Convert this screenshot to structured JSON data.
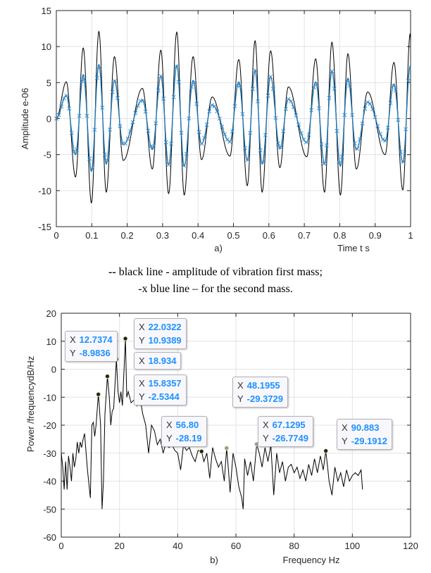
{
  "chart_data": [
    {
      "type": "line",
      "panel_label": "a)",
      "xlabel": "Time t s",
      "ylabel": "Amplitude e-06",
      "xlim": [
        0,
        1
      ],
      "ylim": [
        -15,
        15
      ],
      "xticks": [
        "0",
        "0.1",
        "0.2",
        "0.3",
        "0.4",
        "0.5",
        "0.6",
        "0.7",
        "0.8",
        "0.9",
        "1"
      ],
      "yticks": [
        "15",
        "10",
        "5",
        "0",
        "-5",
        "-10",
        "-15"
      ],
      "grid": true,
      "x": [
        0,
        0.028,
        0.054,
        0.076,
        0.099,
        0.12,
        0.141,
        0.164,
        0.189,
        0.243,
        0.271,
        0.295,
        0.317,
        0.34,
        0.361,
        0.386,
        0.41,
        0.44,
        0.49,
        0.515,
        0.539,
        0.561,
        0.581,
        0.605,
        0.631,
        0.655,
        0.707,
        0.732,
        0.757,
        0.778,
        0.802,
        0.823,
        0.847,
        0.879,
        0.928,
        0.953,
        0.978,
        0.999
      ],
      "series": [
        {
          "color": "#000000",
          "style": "solid",
          "values": [
            0,
            5.1,
            -8.1,
            9.8,
            -11.7,
            12.1,
            -10.2,
            8.6,
            -5.8,
            4.2,
            -7.0,
            9.5,
            -10.4,
            12.0,
            -10.6,
            8.6,
            -5.7,
            3.0,
            -5.2,
            8.2,
            -9.3,
            10.8,
            -10.2,
            9.4,
            -6.8,
            4.4,
            -5.3,
            8.3,
            -10.2,
            10.6,
            -10.6,
            9.0,
            -7.0,
            3.7,
            -5.0,
            7.8,
            -9.9,
            11.8
          ]
        },
        {
          "color": "#1f77b4",
          "style": "line-x-markers",
          "values": [
            0,
            3.2,
            -5.0,
            6.1,
            -7.3,
            7.5,
            -6.3,
            5.3,
            -3.6,
            2.6,
            -4.3,
            5.9,
            -6.4,
            7.4,
            -6.6,
            5.3,
            -3.5,
            1.9,
            -3.2,
            5.1,
            -5.8,
            6.7,
            -6.3,
            5.8,
            -4.2,
            2.7,
            -3.3,
            5.1,
            -6.3,
            6.6,
            -6.6,
            5.6,
            -4.3,
            2.3,
            -3.1,
            4.8,
            -6.1,
            7.3
          ]
        }
      ]
    },
    {
      "type": "line",
      "panel_label": "b)",
      "xlabel": "Frequency Hz",
      "ylabel": "Power /frequencydB/Hz",
      "xlim": [
        0,
        120
      ],
      "ylim": [
        -60,
        20
      ],
      "xticks": [
        "0",
        "20",
        "40",
        "60",
        "80",
        "100",
        "120"
      ],
      "yticks": [
        "20",
        "10",
        "0",
        "-10",
        "-20",
        "-30",
        "-40",
        "-50",
        "-60"
      ],
      "grid": true,
      "x": [
        0,
        0.5,
        1,
        1.5,
        2,
        2.5,
        3,
        3.5,
        4,
        4.5,
        5,
        5.5,
        6,
        6.5,
        7,
        7.5,
        8,
        9,
        10,
        10.5,
        11,
        11.5,
        12,
        12.7374,
        13,
        13.5,
        14,
        14.5,
        15,
        15.8357,
        16.5,
        17,
        17.5,
        18,
        18.934,
        19.5,
        20,
        20.5,
        21,
        22.0322,
        22.5,
        23,
        24,
        25,
        26,
        27,
        28,
        29,
        30,
        31,
        32,
        33,
        34,
        35,
        36,
        37,
        38,
        39,
        40,
        41,
        42,
        43,
        44,
        45,
        46,
        47,
        48.1955,
        49,
        50,
        51,
        52,
        53,
        54,
        55,
        56,
        56.8,
        57.5,
        58,
        59,
        60,
        61,
        62,
        62.5,
        63,
        64,
        65,
        66,
        67.1295,
        68,
        69,
        70,
        71,
        72,
        73,
        74,
        75,
        76,
        77,
        78,
        79,
        80,
        81,
        82,
        83,
        84,
        85,
        86,
        87,
        88,
        89,
        90,
        90.883,
        91.5,
        92,
        93,
        94,
        95,
        96,
        97,
        98,
        99,
        100,
        101,
        102,
        103,
        103.5
      ],
      "values": [
        -30,
        -35,
        -43,
        -33,
        -43,
        -31,
        -35,
        -40,
        -30,
        -35,
        -32,
        -26,
        -30,
        -26,
        -28,
        -25,
        -23,
        -36,
        -46,
        -20,
        -19,
        -24,
        -19.5,
        -8.9836,
        -12,
        -20,
        -50,
        -40,
        -16,
        -2.5344,
        -10,
        -20,
        -15,
        -14,
        3.6,
        -8,
        -12,
        -8,
        -13,
        10.9389,
        -10,
        -8,
        -12,
        -11,
        -13,
        -10,
        -16,
        -20,
        -30,
        -20,
        -22,
        -27,
        -25,
        -30,
        -26,
        -28,
        -27,
        -29,
        -30,
        -36,
        -27,
        -29,
        -28,
        -31,
        -33,
        -29,
        -29.3729,
        -33,
        -30,
        -39,
        -28,
        -32,
        -35,
        -33,
        -40,
        -28.19,
        -37,
        -44,
        -30,
        -35,
        -42,
        -46,
        -50,
        -32,
        -38,
        -33,
        -40,
        -26.7749,
        -30,
        -35,
        -28,
        -33,
        -27,
        -45,
        -30,
        -37,
        -33,
        -40,
        -35,
        -34,
        -37,
        -35,
        -39,
        -36,
        -40,
        -34,
        -38,
        -32,
        -37,
        -31,
        -36,
        -29.1912,
        -35,
        -40,
        -45,
        -35,
        -40,
        -37,
        -42,
        -36,
        -40,
        -38,
        -37,
        -38,
        -36,
        -43
      ],
      "color": "#000000",
      "datatips": [
        {
          "x_label": "X",
          "y_label": "Y",
          "x": "22.0322",
          "y": "10.9389"
        },
        {
          "x_label": "X",
          "y_label": "Y",
          "x": "18.934",
          "y": ""
        },
        {
          "x_label": "X",
          "y_label": "Y",
          "x": "12.7374",
          "y": "-8.9836"
        },
        {
          "x_label": "X",
          "y_label": "Y",
          "x": "15.8357",
          "y": "-2.5344"
        },
        {
          "x_label": "X",
          "y_label": "Y",
          "x": "56.80",
          "y": "-28.19"
        },
        {
          "x_label": "X",
          "y_label": "Y",
          "x": "67.1295",
          "y": "-26.7749"
        },
        {
          "x_label": "X",
          "y_label": "Y",
          "x": "48.1955",
          "y": "-29.3729"
        },
        {
          "x_label": "X",
          "y_label": "Y",
          "x": "90.883",
          "y": "-29.1912"
        }
      ]
    }
  ],
  "caption": {
    "line1_marker": "--",
    "line1": " black line - amplitude of vibration first mass;",
    "line2": "-x blue line – for the second mass."
  }
}
